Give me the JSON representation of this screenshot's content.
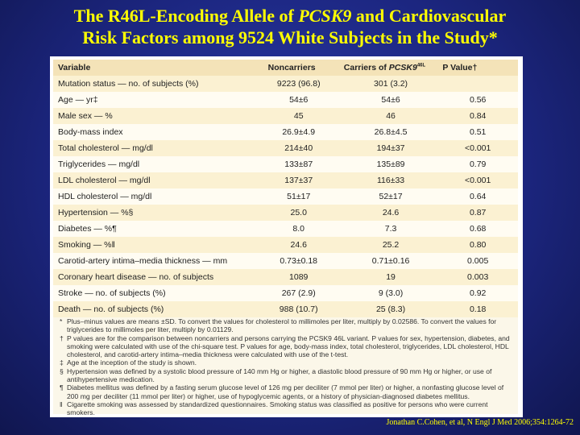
{
  "slide": {
    "title_pre": "The R46L-Encoding Allele of ",
    "title_gene": "PCSK9",
    "title_post": " and Cardiovascular",
    "title_line2": "Risk Factors among 9524 White Subjects in the Study*",
    "citation": "Jonathan C.Cohen, et al, N Engl J Med 2006;354:1264-72"
  },
  "table": {
    "headers": {
      "variable": "Variable",
      "noncarriers": "Noncarriers",
      "carriers_pre": "Carriers of ",
      "carriers_gene": "PCSK9",
      "carriers_sup": "46L",
      "pvalue": "P Value†"
    },
    "rows": [
      {
        "variable": "Mutation status — no. of subjects (%)",
        "noncarriers": "9223 (96.8)",
        "carriers": "301 (3.2)",
        "p": ""
      },
      {
        "variable": "Age — yr‡",
        "noncarriers": "54±6",
        "carriers": "54±6",
        "p": "0.56"
      },
      {
        "variable": "Male sex — %",
        "noncarriers": "45",
        "carriers": "46",
        "p": "0.84"
      },
      {
        "variable": "Body-mass index",
        "noncarriers": "26.9±4.9",
        "carriers": "26.8±4.5",
        "p": "0.51"
      },
      {
        "variable": "Total cholesterol — mg/dl",
        "noncarriers": "214±40",
        "carriers": "194±37",
        "p": "<0.001"
      },
      {
        "variable": "Triglycerides — mg/dl",
        "noncarriers": "133±87",
        "carriers": "135±89",
        "p": "0.79"
      },
      {
        "variable": "LDL cholesterol — mg/dl",
        "noncarriers": "137±37",
        "carriers": "116±33",
        "p": "<0.001"
      },
      {
        "variable": "HDL cholesterol — mg/dl",
        "noncarriers": "51±17",
        "carriers": "52±17",
        "p": "0.64"
      },
      {
        "variable": "Hypertension — %§",
        "noncarriers": "25.0",
        "carriers": "24.6",
        "p": "0.87"
      },
      {
        "variable": "Diabetes — %¶",
        "noncarriers": "8.0",
        "carriers": "7.3",
        "p": "0.68"
      },
      {
        "variable": "Smoking — %‖",
        "noncarriers": "24.6",
        "carriers": "25.2",
        "p": "0.80"
      },
      {
        "variable": "Carotid-artery intima–media thickness — mm",
        "noncarriers": "0.73±0.18",
        "carriers": "0.71±0.16",
        "p": "0.005"
      },
      {
        "variable": "Coronary heart disease — no. of subjects",
        "noncarriers": "1089",
        "carriers": "19",
        "p": "0.003"
      },
      {
        "variable": "Stroke — no. of subjects (%)",
        "noncarriers": "267 (2.9)",
        "carriers": "9 (3.0)",
        "p": "0.92"
      },
      {
        "variable": "Death — no. of subjects (%)",
        "noncarriers": "988 (10.7)",
        "carriers": "25 (8.3)",
        "p": "0.18"
      }
    ]
  },
  "footnotes": [
    {
      "symbol": "*",
      "text": "Plus–minus values are means ±SD. To convert the values for cholesterol to millimoles per liter, multiply by 0.02586. To convert the values for triglycerides to millimoles per liter, multiply by 0.01129."
    },
    {
      "symbol": "†",
      "text": "P values are for the comparison between noncarriers and persons carrying the PCSK9 46L variant. P values for sex, hypertension, diabetes, and smoking were calculated with use of the chi-square test. P values for age, body-mass index, total cholesterol, triglycerides, LDL cholesterol, HDL cholesterol, and carotid-artery intima–media thickness were calculated with use of the t-test."
    },
    {
      "symbol": "‡",
      "text": "Age at the inception of the study is shown."
    },
    {
      "symbol": "§",
      "text": "Hypertension was defined by a systolic blood pressure of 140 mm Hg or higher, a diastolic blood pressure of 90 mm Hg or higher, or use of antihypertensive medication."
    },
    {
      "symbol": "¶",
      "text": "Diabetes mellitus was defined by a fasting serum glucose level of 126 mg per deciliter (7 mmol per liter) or higher, a nonfasting glucose level of 200 mg per deciliter (11 mmol per liter) or higher, use of hypoglycemic agents, or a history of physician-diagnosed diabetes mellitus."
    },
    {
      "symbol": "‖",
      "text": "Cigarette smoking was assessed by standardized questionnaires. Smoking status was classified as positive for persons who were current smokers."
    }
  ]
}
